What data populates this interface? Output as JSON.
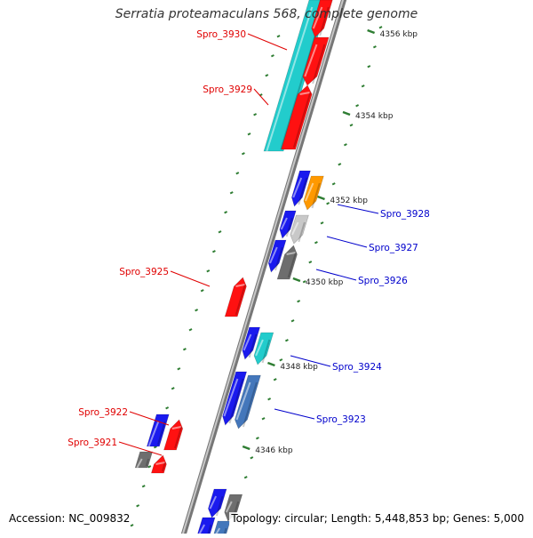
{
  "title": "Serratia proteamaculans 568, complete genome",
  "accession": "Accession: NC_009832",
  "summary": "Topology: circular; Length: 5,448,853 bp; Genes: 5,000",
  "colors": {
    "backbone": "#888888",
    "dotted_track": "#2e7d32",
    "plus_label": "#e00000",
    "minus_label": "#0000cc"
  },
  "kbp_ticks": [
    "4356 kbp",
    "4354 kbp",
    "4352 kbp",
    "4350 kbp",
    "4348 kbp",
    "4346 kbp"
  ],
  "gene_labels": [
    {
      "text": "Spro_3930",
      "strand": "plus"
    },
    {
      "text": "Spro_3929",
      "strand": "plus"
    },
    {
      "text": "Spro_3925",
      "strand": "plus"
    },
    {
      "text": "Spro_3922",
      "strand": "plus"
    },
    {
      "text": "Spro_3921",
      "strand": "plus"
    },
    {
      "text": "Spro_3928",
      "strand": "minus"
    },
    {
      "text": "Spro_3927",
      "strand": "minus"
    },
    {
      "text": "Spro_3926",
      "strand": "minus"
    },
    {
      "text": "Spro_3924",
      "strand": "minus"
    },
    {
      "text": "Spro_3923",
      "strand": "minus"
    }
  ],
  "features": [
    {
      "color": "cyan",
      "hex": "#22cccc"
    },
    {
      "color": "red",
      "hex": "#ff1111"
    },
    {
      "color": "blue",
      "hex": "#1a1aee"
    },
    {
      "color": "orange",
      "hex": "#ff9900"
    },
    {
      "color": "light-gray",
      "hex": "#c8c8c8"
    },
    {
      "color": "dark-gray",
      "hex": "#6e6e6e"
    },
    {
      "color": "steel-blue",
      "hex": "#4477bb"
    }
  ]
}
